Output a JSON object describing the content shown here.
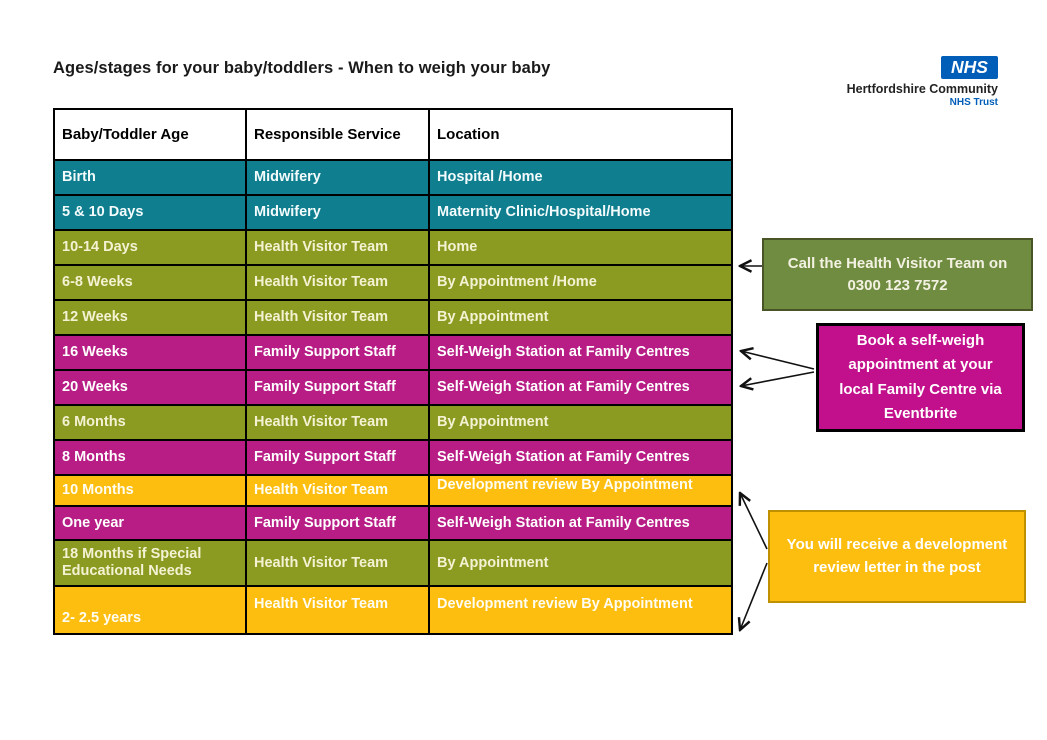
{
  "title": "Ages/stages for your baby/toddlers - When to weigh your baby",
  "logo": {
    "nhs": "NHS",
    "org": "Hertfordshire Community",
    "sub": "NHS Trust"
  },
  "table": {
    "headers": [
      "Baby/Toddler Age",
      "Responsible Service",
      "Location"
    ],
    "rows": [
      {
        "age": "Birth",
        "service": "Midwifery",
        "location": "Hospital /Home",
        "theme": "teal"
      },
      {
        "age": "5 & 10 Days",
        "service": "Midwifery",
        "location": "Maternity Clinic/Hospital/Home",
        "theme": "teal"
      },
      {
        "age": "10-14 Days",
        "service": "Health Visitor Team",
        "location": "Home",
        "theme": "olive"
      },
      {
        "age": "6-8 Weeks",
        "service": "Health Visitor Team",
        "location": "By Appointment /Home",
        "theme": "olive"
      },
      {
        "age": "12 Weeks",
        "service": "Health Visitor Team",
        "location": "By Appointment",
        "theme": "olive"
      },
      {
        "age": "16 Weeks",
        "service": "Family Support Staff",
        "location": "Self-Weigh Station at Family Centres",
        "theme": "magenta"
      },
      {
        "age": "20 Weeks",
        "service": "Family Support Staff",
        "location": "Self-Weigh Station at Family Centres",
        "theme": "magenta"
      },
      {
        "age": "6 Months",
        "service": "Health Visitor Team",
        "location": "By Appointment",
        "theme": "olive"
      },
      {
        "age": "8 Months",
        "service": "Family Support Staff",
        "location": "Self-Weigh Station at Family Centres",
        "theme": "magenta"
      },
      {
        "age": "10 Months",
        "service": "Health Visitor Team",
        "location": "Development review By Appointment",
        "theme": "amber"
      },
      {
        "age": "One year",
        "service": "Family Support Staff",
        "location": "Self-Weigh Station at Family Centres",
        "theme": "magenta"
      },
      {
        "age": "18 Months if Special Educational Needs",
        "service": "Health Visitor Team",
        "location": "By Appointment",
        "theme": "olive"
      },
      {
        "age": "2- 2.5 years",
        "service": "Health Visitor Team",
        "location": "Development review By Appointment",
        "theme": "amber"
      }
    ]
  },
  "callouts": {
    "health_visitor": {
      "text": "Call the Health Visitor Team on 0300 123 7572"
    },
    "eventbrite": {
      "text": "Book a self-weigh appointment at your local Family Centre via Eventbrite"
    },
    "letter": {
      "text": "You will receive a development review letter in the post"
    }
  },
  "colors": {
    "teal": "#0F7F90",
    "olive": "#8B9B21",
    "magenta": "#B71D85",
    "amber": "#FDBE10",
    "callout_green": "#708C40",
    "callout_magenta": "#C2108C",
    "nhs_blue": "#005EB8"
  }
}
